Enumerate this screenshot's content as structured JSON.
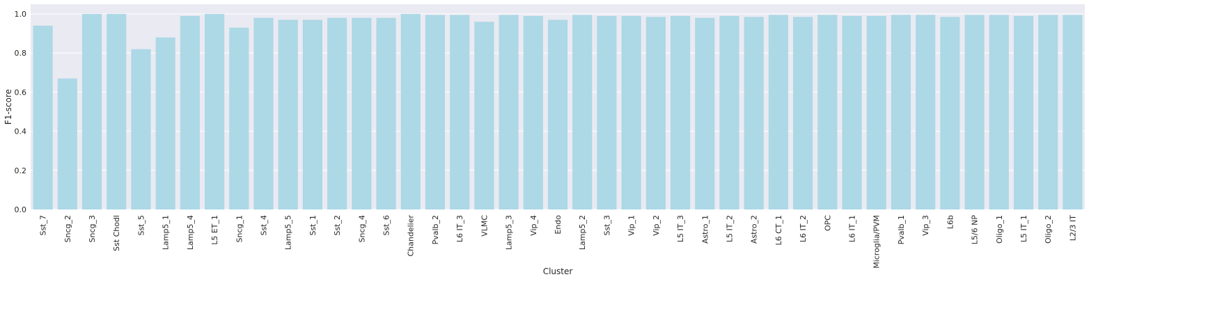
{
  "chart_data": {
    "type": "bar",
    "title": "",
    "xlabel": "Cluster",
    "ylabel": "F1-score",
    "ylim": [
      0,
      1.05
    ],
    "yticks": [
      "0.0",
      "0.2",
      "0.4",
      "0.6",
      "0.8",
      "1.0"
    ],
    "grid": true,
    "colors": {
      "bar": "#add8e6",
      "plot_bg": "#eaeaf2",
      "grid": "#ffffff"
    },
    "categories": [
      "Sst_7",
      "Sncg_2",
      "Sncg_3",
      "Sst Chodl",
      "Sst_5",
      "Lamp5_1",
      "Lamp5_4",
      "L5 ET_1",
      "Sncg_1",
      "Sst_4",
      "Lamp5_5",
      "Sst_1",
      "Sst_2",
      "Sncg_4",
      "Sst_6",
      "Chandelier",
      "Pvalb_2",
      "L6 IT_3",
      "VLMC",
      "Lamp5_3",
      "Vip_4",
      "Endo",
      "Lamp5_2",
      "Sst_3",
      "Vip_1",
      "Vip_2",
      "L5 IT_3",
      "Astro_1",
      "L5 IT_2",
      "Astro_2",
      "L6 CT_1",
      "L6 IT_2",
      "OPC",
      "L6 IT_1",
      "Microglia/PVM",
      "Pvalb_1",
      "Vip_3",
      "L6b",
      "L5/6 NP",
      "Oligo_1",
      "L5 IT_1",
      "Oligo_2",
      "L2/3 IT"
    ],
    "values": [
      0.94,
      0.67,
      1.0,
      1.0,
      0.82,
      0.88,
      0.99,
      1.0,
      0.93,
      0.98,
      0.97,
      0.97,
      0.98,
      0.98,
      0.98,
      1.0,
      0.995,
      0.995,
      0.96,
      0.995,
      0.99,
      0.97,
      0.995,
      0.99,
      0.99,
      0.985,
      0.99,
      0.98,
      0.99,
      0.985,
      0.995,
      0.985,
      0.995,
      0.99,
      0.99,
      0.995,
      0.995,
      0.985,
      0.995,
      0.995,
      0.99,
      0.995,
      0.995
    ]
  }
}
